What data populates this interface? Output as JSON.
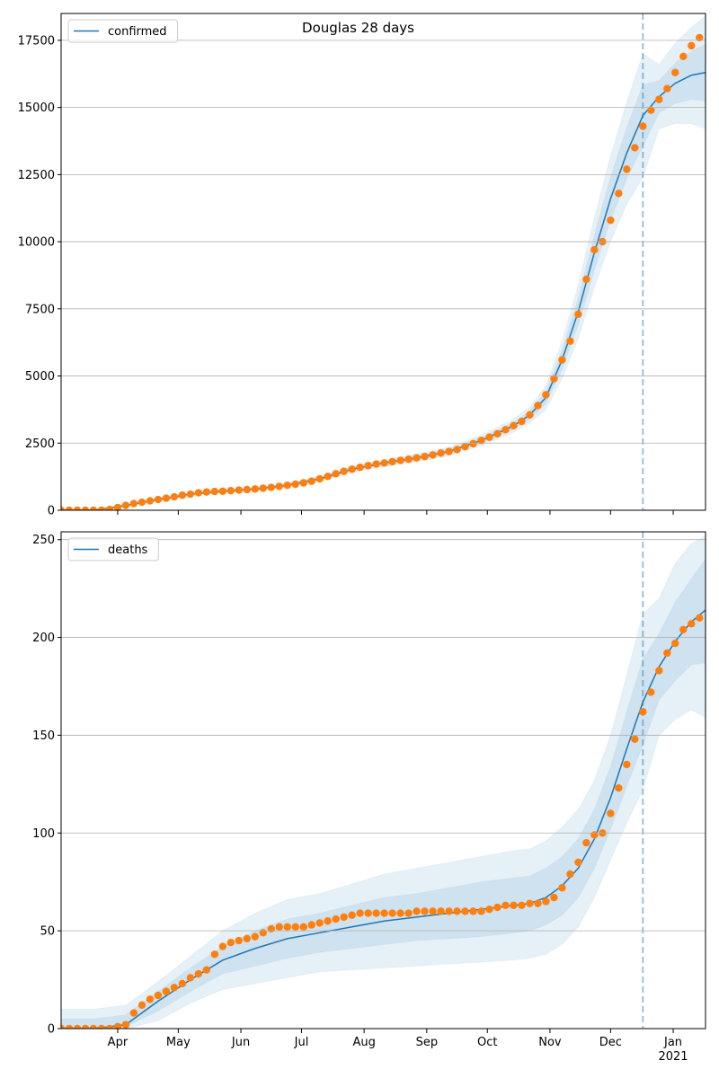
{
  "chart_data": [
    {
      "type": "line",
      "title": "Douglas 28 days",
      "legend": "upper left",
      "grid": true,
      "xlim": [
        0,
        319
      ],
      "xticks": [
        28,
        58,
        89,
        119,
        150,
        181,
        211,
        242,
        272,
        303
      ],
      "ylim": [
        0,
        18500
      ],
      "yticks": [
        0,
        2500,
        5000,
        7500,
        10000,
        12500,
        15000,
        17500
      ],
      "vline": 288,
      "series": [
        {
          "name": "confirmed",
          "color": "#1f77b4",
          "x": [
            0,
            16,
            32,
            48,
            64,
            80,
            96,
            112,
            128,
            144,
            160,
            176,
            192,
            208,
            224,
            232,
            240,
            248,
            256,
            264,
            272,
            280,
            288,
            296,
            304,
            312,
            319
          ],
          "values": [
            0,
            0,
            180,
            400,
            600,
            710,
            790,
            930,
            1170,
            1530,
            1760,
            1950,
            2190,
            2600,
            3150,
            3550,
            4200,
            5600,
            7400,
            9600,
            11600,
            13300,
            14700,
            15400,
            15900,
            16200,
            16300
          ],
          "bands": [
            {
              "lower": [
                0,
                0,
                150,
                350,
                540,
                650,
                720,
                850,
                1070,
                1410,
                1630,
                1800,
                2020,
                2400,
                2900,
                3250,
                3750,
                4900,
                6400,
                8300,
                10000,
                11400,
                12400,
                14200,
                14400,
                14400,
                14200
              ],
              "upper": [
                0,
                0,
                210,
                450,
                660,
                770,
                860,
                1010,
                1270,
                1650,
                1890,
                2100,
                2360,
                2800,
                3400,
                3850,
                4650,
                6300,
                8400,
                10900,
                13200,
                15200,
                17000,
                16600,
                17400,
                18000,
                18400
              ]
            },
            {
              "lower": [
                0,
                0,
                165,
                375,
                570,
                680,
                755,
                890,
                1120,
                1470,
                1695,
                1875,
                2105,
                2500,
                3025,
                3400,
                3975,
                5250,
                6900,
                8950,
                10800,
                12350,
                13550,
                14800,
                15150,
                15300,
                15250
              ],
              "upper": [
                0,
                0,
                195,
                425,
                630,
                740,
                825,
                970,
                1220,
                1590,
                1825,
                2025,
                2275,
                2700,
                3275,
                3700,
                4425,
                5950,
                7900,
                10250,
                12400,
                14250,
                15850,
                16000,
                16650,
                17100,
                17350
              ]
            }
          ]
        }
      ],
      "observed": {
        "color": "#ff7f0e",
        "x": [
          0,
          4,
          8,
          12,
          16,
          20,
          24,
          28,
          32,
          36,
          40,
          44,
          48,
          52,
          56,
          60,
          64,
          68,
          72,
          76,
          80,
          84,
          88,
          92,
          96,
          100,
          104,
          108,
          112,
          116,
          120,
          124,
          128,
          132,
          136,
          140,
          144,
          148,
          152,
          156,
          160,
          164,
          168,
          172,
          176,
          180,
          184,
          188,
          192,
          196,
          200,
          204,
          208,
          212,
          216,
          220,
          224,
          228,
          232,
          236,
          240,
          244,
          248,
          252,
          256,
          260,
          264,
          268,
          272,
          276,
          280,
          284,
          288,
          292,
          296,
          300,
          304,
          308,
          312,
          316
        ],
        "values": [
          0,
          0,
          0,
          0,
          0,
          0,
          30,
          100,
          180,
          250,
          300,
          350,
          400,
          450,
          500,
          560,
          600,
          650,
          680,
          700,
          710,
          730,
          750,
          770,
          790,
          820,
          850,
          890,
          930,
          970,
          1020,
          1080,
          1170,
          1260,
          1360,
          1450,
          1530,
          1600,
          1660,
          1720,
          1760,
          1810,
          1860,
          1900,
          1950,
          2000,
          2060,
          2130,
          2190,
          2260,
          2370,
          2480,
          2600,
          2720,
          2850,
          3000,
          3150,
          3310,
          3550,
          3900,
          4300,
          4900,
          5600,
          6300,
          7300,
          8600,
          9700,
          10000,
          10800,
          11800,
          12700,
          13500,
          14300,
          14900,
          15300,
          15700,
          16300,
          16900,
          17300,
          17600
        ]
      }
    },
    {
      "type": "line",
      "legend": "upper left",
      "grid": true,
      "xlim": [
        0,
        319
      ],
      "xticks": [
        {
          "value": 28,
          "label": "Apr"
        },
        {
          "value": 58,
          "label": "May"
        },
        {
          "value": 89,
          "label": "Jun"
        },
        {
          "value": 119,
          "label": "Jul"
        },
        {
          "value": 150,
          "label": "Aug"
        },
        {
          "value": 181,
          "label": "Sep"
        },
        {
          "value": 211,
          "label": "Oct"
        },
        {
          "value": 242,
          "label": "Nov"
        },
        {
          "value": 272,
          "label": "Dec"
        },
        {
          "value": 303,
          "label": "Jan\n2021"
        }
      ],
      "ylim": [
        0,
        254
      ],
      "yticks": [
        0,
        50,
        100,
        150,
        200,
        250
      ],
      "vline": 288,
      "series": [
        {
          "name": "deaths",
          "color": "#1f77b4",
          "x": [
            0,
            16,
            32,
            48,
            64,
            80,
            96,
            112,
            128,
            144,
            160,
            176,
            192,
            208,
            224,
            232,
            240,
            248,
            256,
            264,
            272,
            280,
            288,
            296,
            304,
            312,
            319
          ],
          "values": [
            0,
            0,
            2,
            14,
            25,
            35,
            41,
            46,
            49,
            52,
            55,
            57,
            59,
            61,
            63,
            64,
            67,
            73,
            82,
            97,
            118,
            143,
            167,
            185,
            198,
            208,
            214
          ],
          "bands": [
            {
              "lower": [
                0,
                0,
                0,
                4,
                13,
                20,
                23,
                26,
                29,
                30,
                31,
                32,
                33,
                34,
                35,
                36,
                38,
                43,
                52,
                67,
                86,
                105,
                122,
                150,
                158,
                163,
                159
              ],
              "upper": [
                10,
                10,
                12,
                24,
                37,
                50,
                59,
                66,
                69,
                74,
                79,
                82,
                85,
                88,
                91,
                92,
                96,
                103,
                112,
                127,
                150,
                181,
                212,
                220,
                238,
                248,
                252
              ]
            },
            {
              "lower": [
                0,
                0,
                1,
                9,
                19,
                28,
                32,
                36,
                39,
                41,
                43,
                45,
                46,
                47,
                49,
                50,
                53,
                58,
                67,
                82,
                102,
                124,
                145,
                168,
                178,
                186,
                187
              ],
              "upper": [
                5,
                5,
                7,
                19,
                31,
                42,
                50,
                56,
                59,
                63,
                67,
                69,
                72,
                75,
                77,
                78,
                82,
                88,
                97,
                112,
                134,
                162,
                189,
                202,
                218,
                230,
                240
              ]
            }
          ]
        }
      ],
      "observed": {
        "color": "#ff7f0e",
        "x": [
          0,
          4,
          8,
          12,
          16,
          20,
          24,
          28,
          32,
          36,
          40,
          44,
          48,
          52,
          56,
          60,
          64,
          68,
          72,
          76,
          80,
          84,
          88,
          92,
          96,
          100,
          104,
          108,
          112,
          116,
          120,
          124,
          128,
          132,
          136,
          140,
          144,
          148,
          152,
          156,
          160,
          164,
          168,
          172,
          176,
          180,
          184,
          188,
          192,
          196,
          200,
          204,
          208,
          212,
          216,
          220,
          224,
          228,
          232,
          236,
          240,
          244,
          248,
          252,
          256,
          260,
          264,
          268,
          272,
          276,
          280,
          284,
          288,
          292,
          296,
          300,
          304,
          308,
          312,
          316
        ],
        "values": [
          0,
          0,
          0,
          0,
          0,
          0,
          0,
          1,
          2,
          8,
          12,
          15,
          17,
          19,
          21,
          23,
          26,
          28,
          30,
          38,
          42,
          44,
          45,
          46,
          47,
          49,
          51,
          52,
          52,
          52,
          52,
          53,
          54,
          55,
          56,
          57,
          58,
          59,
          59,
          59,
          59,
          59,
          59,
          59,
          60,
          60,
          60,
          60,
          60,
          60,
          60,
          60,
          60,
          61,
          62,
          63,
          63,
          63,
          64,
          64,
          65,
          67,
          72,
          79,
          85,
          95,
          99,
          100,
          110,
          123,
          135,
          148,
          162,
          172,
          183,
          192,
          197,
          204,
          207,
          210
        ]
      }
    }
  ]
}
